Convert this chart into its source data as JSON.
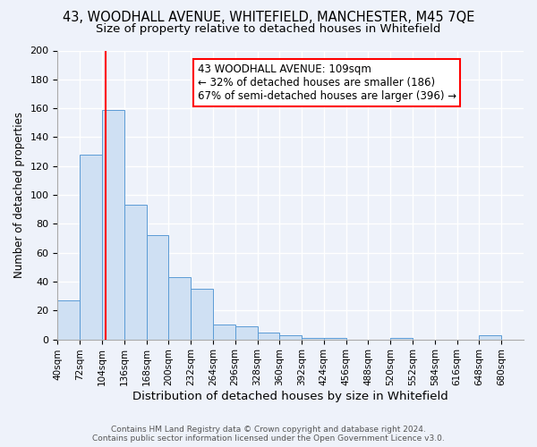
{
  "title": "43, WOODHALL AVENUE, WHITEFIELD, MANCHESTER, M45 7QE",
  "subtitle": "Size of property relative to detached houses in Whitefield",
  "xlabel": "Distribution of detached houses by size in Whitefield",
  "ylabel": "Number of detached properties",
  "bar_color": "#cfe0f3",
  "bar_edge_color": "#5b9bd5",
  "bin_labels": [
    "40sqm",
    "72sqm",
    "104sqm",
    "136sqm",
    "168sqm",
    "200sqm",
    "232sqm",
    "264sqm",
    "296sqm",
    "328sqm",
    "360sqm",
    "392sqm",
    "424sqm",
    "456sqm",
    "488sqm",
    "520sqm",
    "552sqm",
    "584sqm",
    "616sqm",
    "648sqm",
    "680sqm"
  ],
  "bin_edges": [
    40,
    72,
    104,
    136,
    168,
    200,
    232,
    264,
    296,
    328,
    360,
    392,
    424,
    456,
    488,
    520,
    552,
    584,
    616,
    648,
    680,
    712
  ],
  "bar_heights": [
    27,
    128,
    159,
    93,
    72,
    43,
    35,
    10,
    9,
    5,
    3,
    1,
    1,
    0,
    0,
    1,
    0,
    0,
    0,
    3,
    0
  ],
  "ylim": [
    0,
    200
  ],
  "yticks": [
    0,
    20,
    40,
    60,
    80,
    100,
    120,
    140,
    160,
    180,
    200
  ],
  "red_line_x": 109,
  "annotation_title": "43 WOODHALL AVENUE: 109sqm",
  "annotation_line1": "← 32% of detached houses are smaller (186)",
  "annotation_line2": "67% of semi-detached houses are larger (396) →",
  "footer1": "Contains HM Land Registry data © Crown copyright and database right 2024.",
  "footer2": "Contains public sector information licensed under the Open Government Licence v3.0.",
  "bg_color": "#eef2fa",
  "grid_color": "#ffffff",
  "title_fontsize": 10.5,
  "subtitle_fontsize": 9.5,
  "ylabel_fontsize": 8.5,
  "xlabel_fontsize": 9.5,
  "tick_fontsize": 7.5,
  "ytick_fontsize": 8,
  "footer_fontsize": 6.5,
  "annotation_fontsize": 8.5
}
